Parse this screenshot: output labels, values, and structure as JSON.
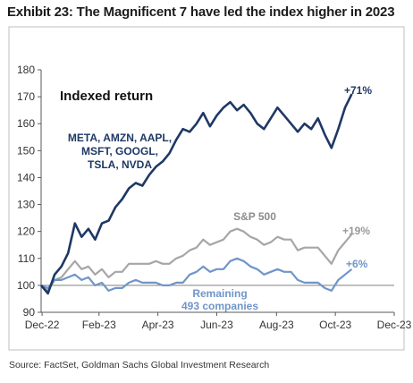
{
  "title": "Exhibit 23: The Magnificent 7 have led the index higher in 2023",
  "source": "Source: FactSet, Goldman Sachs Global Investment Research",
  "chart_data": {
    "type": "line",
    "title": "Indexed return",
    "xlabel": "",
    "ylabel": "",
    "ylim": [
      90,
      180
    ],
    "y_ticks": [
      90,
      100,
      110,
      120,
      130,
      140,
      150,
      160,
      170,
      180
    ],
    "x_ticks": [
      "Dec-22",
      "Feb-23",
      "Apr-23",
      "Jun-23",
      "Aug-23",
      "Oct-23",
      "Dec-23"
    ],
    "x_range": [
      "2022-12-30",
      "2023-12-31"
    ],
    "grid": false,
    "baseline": 100,
    "colors": {
      "mag7": "#1f3864",
      "sp500": "#a6a6a6",
      "remaining": "#6f95c9"
    },
    "series": [
      {
        "key": "mag7",
        "name": "META, AMZN, AAPL, MSFT, GOOGL, TSLA, NVDA",
        "end_label": "+71%",
        "x": [
          "2022-12-30",
          "2023-01-06",
          "2023-01-13",
          "2023-01-20",
          "2023-01-27",
          "2023-02-03",
          "2023-02-10",
          "2023-02-17",
          "2023-02-24",
          "2023-03-03",
          "2023-03-10",
          "2023-03-17",
          "2023-03-24",
          "2023-03-31",
          "2023-04-07",
          "2023-04-14",
          "2023-04-21",
          "2023-04-28",
          "2023-05-05",
          "2023-05-12",
          "2023-05-19",
          "2023-05-26",
          "2023-06-02",
          "2023-06-09",
          "2023-06-16",
          "2023-06-23",
          "2023-06-30",
          "2023-07-07",
          "2023-07-14",
          "2023-07-21",
          "2023-07-28",
          "2023-08-04",
          "2023-08-11",
          "2023-08-18",
          "2023-08-25",
          "2023-09-01",
          "2023-09-08",
          "2023-09-15",
          "2023-09-22",
          "2023-09-29",
          "2023-10-06",
          "2023-10-13",
          "2023-10-20",
          "2023-10-27",
          "2023-11-03",
          "2023-11-10",
          "2023-11-17"
        ],
        "values": [
          100,
          97,
          104,
          107,
          112,
          123,
          118,
          121,
          117,
          123,
          124,
          129,
          132,
          136,
          138,
          137,
          141,
          144,
          146,
          149,
          154,
          158,
          157,
          160,
          164,
          159,
          163,
          166,
          168,
          165,
          167,
          164,
          160,
          158,
          162,
          166,
          163,
          160,
          157,
          160,
          158,
          162,
          156,
          151,
          158,
          166,
          171
        ]
      },
      {
        "key": "sp500",
        "name": "S&P 500",
        "end_label": "+19%",
        "x": [
          "2022-12-30",
          "2023-01-06",
          "2023-01-13",
          "2023-01-20",
          "2023-01-27",
          "2023-02-03",
          "2023-02-10",
          "2023-02-17",
          "2023-02-24",
          "2023-03-03",
          "2023-03-10",
          "2023-03-17",
          "2023-03-24",
          "2023-03-31",
          "2023-04-07",
          "2023-04-14",
          "2023-04-21",
          "2023-04-28",
          "2023-05-05",
          "2023-05-12",
          "2023-05-19",
          "2023-05-26",
          "2023-06-02",
          "2023-06-09",
          "2023-06-16",
          "2023-06-23",
          "2023-06-30",
          "2023-07-07",
          "2023-07-14",
          "2023-07-21",
          "2023-07-28",
          "2023-08-04",
          "2023-08-11",
          "2023-08-18",
          "2023-08-25",
          "2023-09-01",
          "2023-09-08",
          "2023-09-15",
          "2023-09-22",
          "2023-09-29",
          "2023-10-06",
          "2023-10-13",
          "2023-10-20",
          "2023-10-27",
          "2023-11-03",
          "2023-11-10",
          "2023-11-17"
        ],
        "values": [
          100,
          98,
          102,
          103,
          106,
          109,
          106,
          107,
          104,
          106,
          103,
          105,
          105,
          108,
          108,
          108,
          108,
          109,
          108,
          108,
          110,
          111,
          113,
          114,
          117,
          115,
          116,
          117,
          120,
          121,
          120,
          118,
          117,
          115,
          116,
          118,
          117,
          117,
          113,
          114,
          114,
          114,
          111,
          108,
          113,
          116,
          119
        ]
      },
      {
        "key": "remaining",
        "name": "Remaining 493 companies",
        "end_label": "+6%",
        "x": [
          "2022-12-30",
          "2023-01-06",
          "2023-01-13",
          "2023-01-20",
          "2023-01-27",
          "2023-02-03",
          "2023-02-10",
          "2023-02-17",
          "2023-02-24",
          "2023-03-03",
          "2023-03-10",
          "2023-03-17",
          "2023-03-24",
          "2023-03-31",
          "2023-04-07",
          "2023-04-14",
          "2023-04-21",
          "2023-04-28",
          "2023-05-05",
          "2023-05-12",
          "2023-05-19",
          "2023-05-26",
          "2023-06-02",
          "2023-06-09",
          "2023-06-16",
          "2023-06-23",
          "2023-06-30",
          "2023-07-07",
          "2023-07-14",
          "2023-07-21",
          "2023-07-28",
          "2023-08-04",
          "2023-08-11",
          "2023-08-18",
          "2023-08-25",
          "2023-09-01",
          "2023-09-08",
          "2023-09-15",
          "2023-09-22",
          "2023-09-29",
          "2023-10-06",
          "2023-10-13",
          "2023-10-20",
          "2023-10-27",
          "2023-11-03",
          "2023-11-10",
          "2023-11-17"
        ],
        "values": [
          100,
          99,
          102,
          102,
          103,
          104,
          102,
          103,
          100,
          101,
          98,
          99,
          99,
          101,
          102,
          101,
          101,
          101,
          100,
          100,
          101,
          101,
          104,
          105,
          107,
          105,
          106,
          106,
          109,
          110,
          109,
          107,
          106,
          104,
          105,
          106,
          105,
          105,
          102,
          101,
          101,
          101,
          99,
          98,
          102,
          104,
          106
        ]
      }
    ]
  }
}
